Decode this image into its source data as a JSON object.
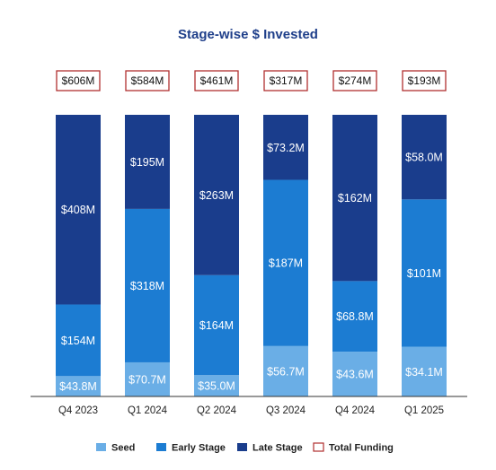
{
  "chart_data": {
    "type": "bar",
    "stacked": true,
    "title": "Stage-wise $ Invested",
    "categories": [
      "Q4 2023",
      "Q1 2024",
      "Q2 2024",
      "Q3 2024",
      "Q4 2024",
      "Q1 2025"
    ],
    "series": [
      {
        "name": "Seed",
        "values": [
          43.8,
          70.7,
          35.0,
          56.7,
          43.6,
          34.1
        ],
        "labels": [
          "$43.8M",
          "$70.7M",
          "$35.0M",
          "$56.7M",
          "$43.6M",
          "$34.1M"
        ]
      },
      {
        "name": "Early Stage",
        "values": [
          154,
          318,
          164,
          187,
          68.8,
          101
        ],
        "labels": [
          "$154M",
          "$318M",
          "$164M",
          "$187M",
          "$68.8M",
          "$101M"
        ]
      },
      {
        "name": "Late Stage",
        "values": [
          408,
          195,
          263,
          73.2,
          162,
          58.0
        ],
        "labels": [
          "$408M",
          "$195M",
          "$263M",
          "$73.2M",
          "$162M",
          "$58.0M"
        ]
      }
    ],
    "total_funding": {
      "name": "Total Funding",
      "values": [
        606,
        584,
        461,
        317,
        274,
        193
      ],
      "labels": [
        "$606M",
        "$584M",
        "$461M",
        "$317M",
        "$274M",
        "$193M"
      ]
    },
    "legend_position": "bottom",
    "grid": false,
    "colors": {
      "title": "#1f3f8a",
      "seed": "#6aaee6",
      "early_stage": "#1c7cd2",
      "late_stage": "#1a3d8c",
      "total_border": "#b03030",
      "axis": "#333333"
    }
  }
}
